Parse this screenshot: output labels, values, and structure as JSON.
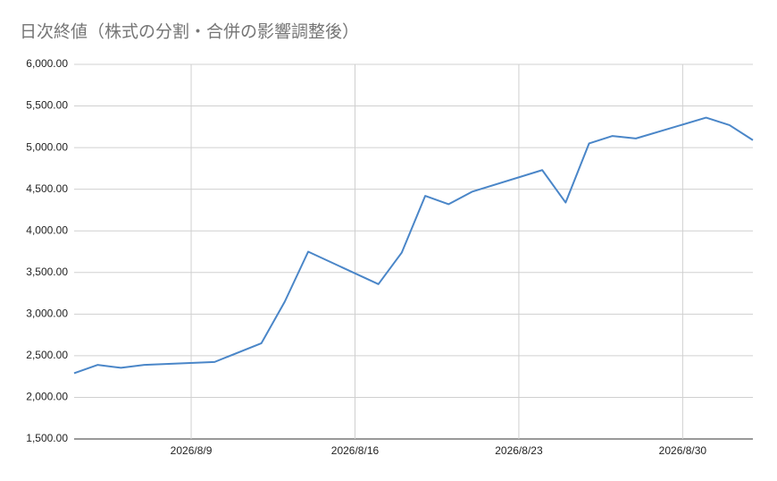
{
  "chart_data": {
    "type": "line",
    "title": "日次終値（株式の分割・合併の影響調整後）",
    "x": [
      "2026/8/4",
      "2026/8/5",
      "2026/8/6",
      "2026/8/7",
      "2026/8/10",
      "2026/8/12",
      "2026/8/13",
      "2026/8/14",
      "2026/8/17",
      "2026/8/18",
      "2026/8/19",
      "2026/8/20",
      "2026/8/21",
      "2026/8/24",
      "2026/8/25",
      "2026/8/26",
      "2026/8/27",
      "2026/8/28",
      "2026/8/31",
      "2026/9/1",
      "2026/9/2"
    ],
    "values": [
      2290,
      2390,
      2355,
      2390,
      2425,
      2650,
      3150,
      3750,
      3360,
      3740,
      4420,
      4320,
      4470,
      4730,
      4340,
      5050,
      5140,
      5110,
      5360,
      5270,
      5090
    ],
    "color": "#4a86c8",
    "xlim": [
      "2026/8/4",
      "2026/9/2"
    ],
    "xticks": [
      "2026/8/9",
      "2026/8/16",
      "2026/8/23",
      "2026/8/30"
    ],
    "ylim": [
      1500,
      6000
    ],
    "yticks": [
      {
        "value": 1500,
        "label": "1,500.00"
      },
      {
        "value": 2000,
        "label": "2,000.00"
      },
      {
        "value": 2500,
        "label": "2,500.00"
      },
      {
        "value": 3000,
        "label": "3,000.00"
      },
      {
        "value": 3500,
        "label": "3,500.00"
      },
      {
        "value": 4000,
        "label": "4,000.00"
      },
      {
        "value": 4500,
        "label": "4,500.00"
      },
      {
        "value": 5000,
        "label": "5,000.00"
      },
      {
        "value": 5500,
        "label": "5,500.00"
      },
      {
        "value": 6000,
        "label": "6,000.00"
      }
    ],
    "grid": true
  }
}
